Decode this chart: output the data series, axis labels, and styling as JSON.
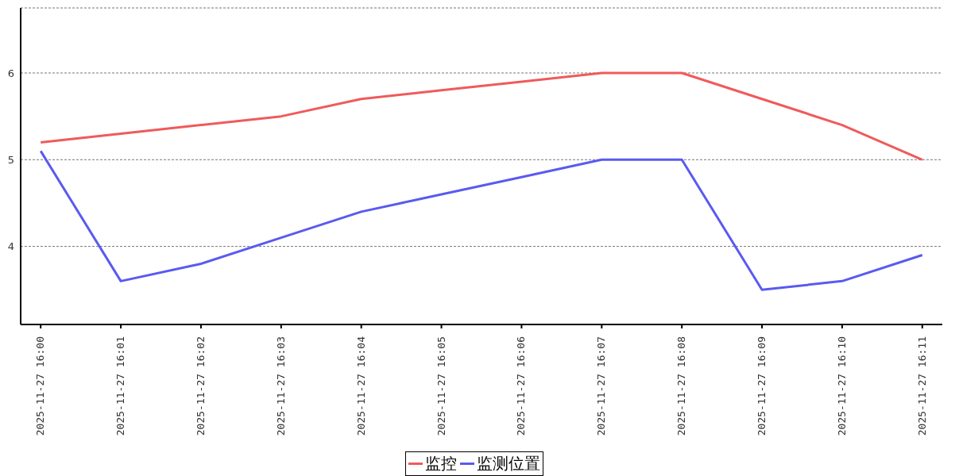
{
  "chart_data": {
    "type": "line",
    "categories": [
      "2025-11-27 16:00",
      "2025-11-27 16:01",
      "2025-11-27 16:02",
      "2025-11-27 16:03",
      "2025-11-27 16:04",
      "2025-11-27 16:05",
      "2025-11-27 16:06",
      "2025-11-27 16:07",
      "2025-11-27 16:08",
      "2025-11-27 16:09",
      "2025-11-27 16:10",
      "2025-11-27 16:11"
    ],
    "series": [
      {
        "name": "监控",
        "color": "#f05a5a",
        "values": [
          5.2,
          5.3,
          5.4,
          5.5,
          5.7,
          5.8,
          5.9,
          6.0,
          6.0,
          5.7,
          5.4,
          5.0
        ]
      },
      {
        "name": "监测位置",
        "color": "#5a5af0",
        "values": [
          5.1,
          3.6,
          3.8,
          4.1,
          4.4,
          4.6,
          4.8,
          5.0,
          5.0,
          3.5,
          3.6,
          3.9
        ]
      }
    ],
    "ylim": [
      3.1,
      6.75
    ],
    "yticks": [
      4,
      5,
      6
    ],
    "grid": "y",
    "legend": "bottom",
    "marker": "none",
    "line_style": "solid"
  }
}
